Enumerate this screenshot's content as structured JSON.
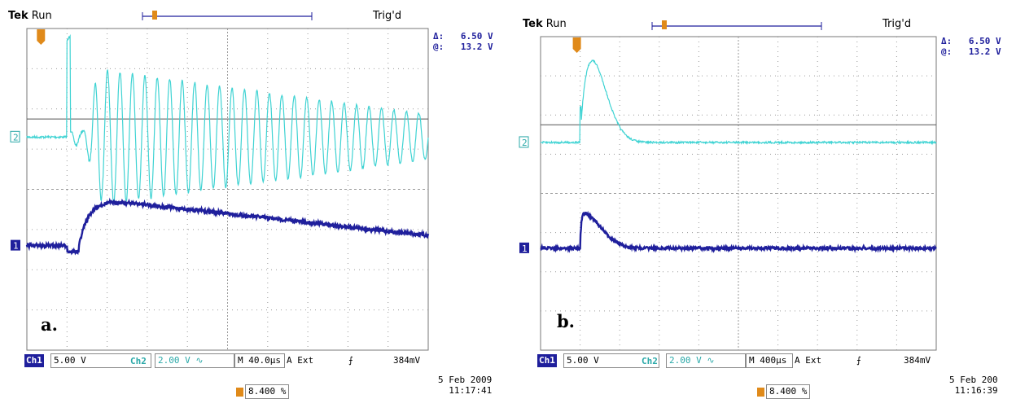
{
  "colors": {
    "ch1": "#1f1f9c",
    "ch2": "#3fd3d3",
    "trigger": "#e08a1a",
    "grid": "#9a9a9a"
  },
  "chart_data": [
    {
      "type": "line",
      "panel": "a.",
      "header": {
        "brand": "Tek",
        "mode": "Run",
        "status": "Trig'd"
      },
      "measurements": {
        "delta_label": "Δ:",
        "delta_value": "6.50 V",
        "at_label": "@:",
        "at_value": "13.2 V"
      },
      "markers": {
        "ch2": "2",
        "ch1": "1"
      },
      "settings": {
        "ch1_tag": "Ch1",
        "ch1_scale": "5.00 V",
        "ch2_tag": "Ch2",
        "ch2_scale": "2.00 V ∿",
        "timebase": "M 40.0µs",
        "trigger_src": "A  Ext",
        "trigger_slope": "⨍",
        "trigger_level": "384mV"
      },
      "footer": {
        "position": "8.400 %",
        "date": "5 Feb  2009",
        "time": "11:17:41"
      },
      "grid": {
        "divisions_x": 10,
        "divisions_y": 8,
        "on": true
      },
      "series": [
        {
          "channel": "Ch2",
          "kind": "damped-oscillation",
          "trigger_div": 1.0,
          "baseline_div": 2.7,
          "initial_amplitude_div": 1.8,
          "final_amplitude_div": 0.55,
          "cycles": 29
        },
        {
          "channel": "Ch1",
          "kind": "rise-decay",
          "trigger_div": 1.0,
          "baseline_div": 5.4,
          "peak_div": 1.2,
          "tail_div": 0.25
        }
      ]
    },
    {
      "type": "line",
      "panel": "b.",
      "header": {
        "brand": "Tek",
        "mode": "Run",
        "status": "Trig'd"
      },
      "measurements": {
        "delta_label": "Δ:",
        "delta_value": "6.50 V",
        "at_label": "@:",
        "at_value": "13.2 V"
      },
      "markers": {
        "ch2": "2",
        "ch1": "1"
      },
      "settings": {
        "ch1_tag": "Ch1",
        "ch1_scale": "5.00 V",
        "ch2_tag": "Ch2",
        "ch2_scale": "2.00 V ∿",
        "timebase": "M 400µs",
        "trigger_src": "A  Ext",
        "trigger_slope": "⨍",
        "trigger_level": "384mV"
      },
      "footer": {
        "position": "8.400 %",
        "date": "5 Feb  200",
        "time": "11:16:39"
      },
      "grid": {
        "divisions_x": 10,
        "divisions_y": 8,
        "on": true
      },
      "series": [
        {
          "channel": "Ch2",
          "kind": "pulse",
          "trigger_div": 1.0,
          "baseline_div": 2.7,
          "peak_div": 2.3,
          "width_div": 1.3
        },
        {
          "channel": "Ch1",
          "kind": "pulse",
          "trigger_div": 1.0,
          "baseline_div": 5.4,
          "peak_div": 0.9,
          "width_div": 1.4
        }
      ]
    }
  ]
}
